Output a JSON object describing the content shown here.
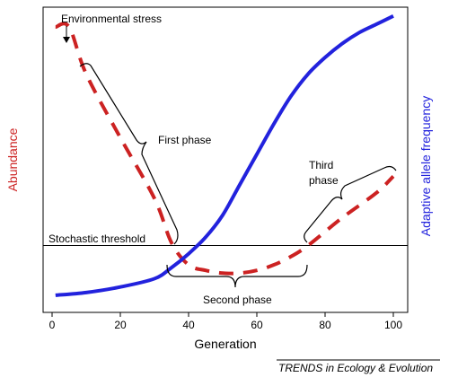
{
  "chart_data": {
    "type": "line",
    "xlabel": "Generation",
    "ylabel_left": "Abundance",
    "ylabel_right": "Adaptive allele frequency",
    "xlim": [
      0,
      100
    ],
    "ylim": [
      0,
      1
    ],
    "x_ticks": [
      "0",
      "20",
      "40",
      "60",
      "80",
      "100"
    ],
    "grid": false,
    "series": [
      {
        "name": "Abundance",
        "color": "#cc2222",
        "style": "dashed",
        "x": [
          1,
          5,
          10,
          20,
          30,
          35,
          40,
          45,
          50,
          55,
          60,
          65,
          70,
          75,
          85,
          95,
          100
        ],
        "y": [
          0.98,
          0.98,
          0.81,
          0.58,
          0.36,
          0.2,
          0.12,
          0.1,
          0.09,
          0.09,
          0.1,
          0.12,
          0.15,
          0.19,
          0.29,
          0.38,
          0.44
        ]
      },
      {
        "name": "Adaptive allele frequency",
        "color": "#2222dd",
        "style": "solid",
        "x": [
          1,
          10,
          20,
          30,
          35,
          40,
          45,
          50,
          55,
          60,
          65,
          70,
          75,
          80,
          85,
          90,
          95,
          100
        ],
        "y": [
          0.01,
          0.02,
          0.04,
          0.07,
          0.11,
          0.16,
          0.22,
          0.3,
          0.41,
          0.52,
          0.63,
          0.73,
          0.81,
          0.87,
          0.92,
          0.96,
          0.99,
          1.02
        ]
      }
    ],
    "threshold": {
      "label": "Stochastic threshold",
      "y": 0.19
    },
    "annotations": {
      "stress": "Environmental stress",
      "phase1": "First phase",
      "phase2": "Second phase",
      "phase3_line1": "Third",
      "phase3_line2": "phase"
    },
    "source": "TRENDS in Ecology & Evolution"
  }
}
